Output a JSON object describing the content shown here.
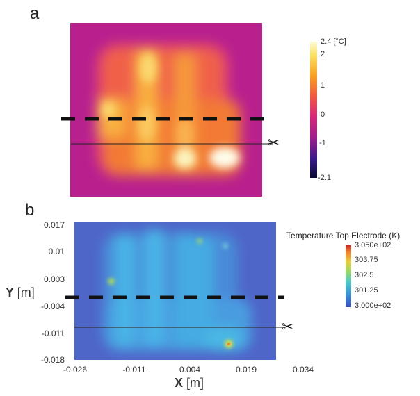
{
  "panel_a": {
    "label": "a",
    "colorbar": {
      "top_label": "2.4 [°C]",
      "ticks": [
        "2",
        "1",
        "0",
        "-1",
        "-2.1"
      ],
      "colors": [
        "#0a0a32",
        "#3a1a8a",
        "#a0208a",
        "#d8287a",
        "#f05a40",
        "#f8a020",
        "#fbe060",
        "#fcfcd8"
      ]
    },
    "heat_colors": {
      "background": "#b8208e",
      "warm": "#f08030",
      "hot": "#fbe888"
    }
  },
  "panel_b": {
    "label": "b",
    "colorbar": {
      "title": "Temperature Top Electrode (K)",
      "ticks": [
        "3.050e+02",
        "303.75",
        "302.5",
        "301.25",
        "3.000e+02"
      ],
      "colors": [
        "#3b4cc0",
        "#3a8fd6",
        "#4cc8c8",
        "#90d870",
        "#e8d040",
        "#f08030",
        "#c02020"
      ]
    },
    "x_axis": {
      "label": "X",
      "unit": "[m]",
      "ticks": [
        "-0.026",
        "-0.011",
        "0.004",
        "0.019",
        "0.034"
      ]
    },
    "y_axis": {
      "label": "Y",
      "unit": "[m]",
      "ticks": [
        "0.017",
        "0.01",
        "0.003",
        "-0.004",
        "-0.011",
        "-0.018"
      ]
    },
    "heat_colors": {
      "background": "#4e66c8",
      "warm": "#43b8e0",
      "hot": "#d8e040"
    }
  }
}
